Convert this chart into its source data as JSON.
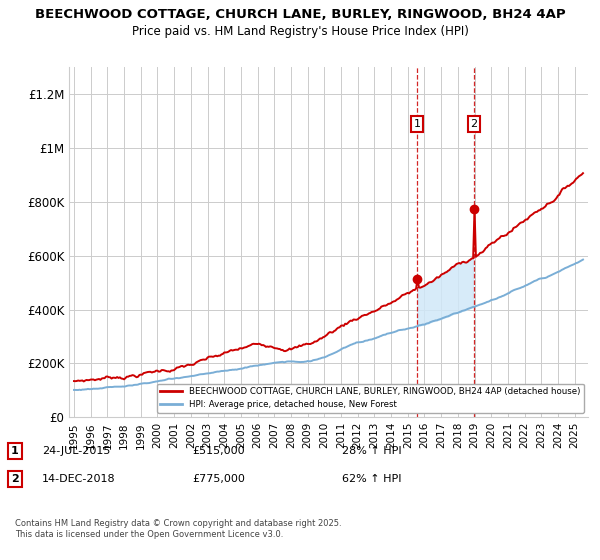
{
  "title_line1": "BEECHWOOD COTTAGE, CHURCH LANE, BURLEY, RINGWOOD, BH24 4AP",
  "title_line2": "Price paid vs. HM Land Registry's House Price Index (HPI)",
  "ylabel_ticks": [
    "£0",
    "£200K",
    "£400K",
    "£600K",
    "£800K",
    "£1M",
    "£1.2M"
  ],
  "ytick_values": [
    0,
    200000,
    400000,
    600000,
    800000,
    1000000,
    1200000
  ],
  "ylim": [
    0,
    1300000
  ],
  "xlim_start": 1994.7,
  "xlim_end": 2025.8,
  "sale1_x": 2015.56,
  "sale1_y": 515000,
  "sale2_x": 2018.96,
  "sale2_y": 775000,
  "legend_line1": "BEECHWOOD COTTAGE, CHURCH LANE, BURLEY, RINGWOOD, BH24 4AP (detached house)",
  "legend_line2": "HPI: Average price, detached house, New Forest",
  "date1": "24-JUL-2015",
  "price1": "£515,000",
  "pct1": "28% ↑ HPI",
  "date2": "14-DEC-2018",
  "price2": "£775,000",
  "pct2": "62% ↑ HPI",
  "copyright_text": "Contains HM Land Registry data © Crown copyright and database right 2025.\nThis data is licensed under the Open Government Licence v3.0.",
  "line_color_red": "#cc0000",
  "line_color_blue": "#7aaed6",
  "shade_color": "#d0e8f8",
  "background_color": "#ffffff",
  "grid_color": "#cccccc"
}
